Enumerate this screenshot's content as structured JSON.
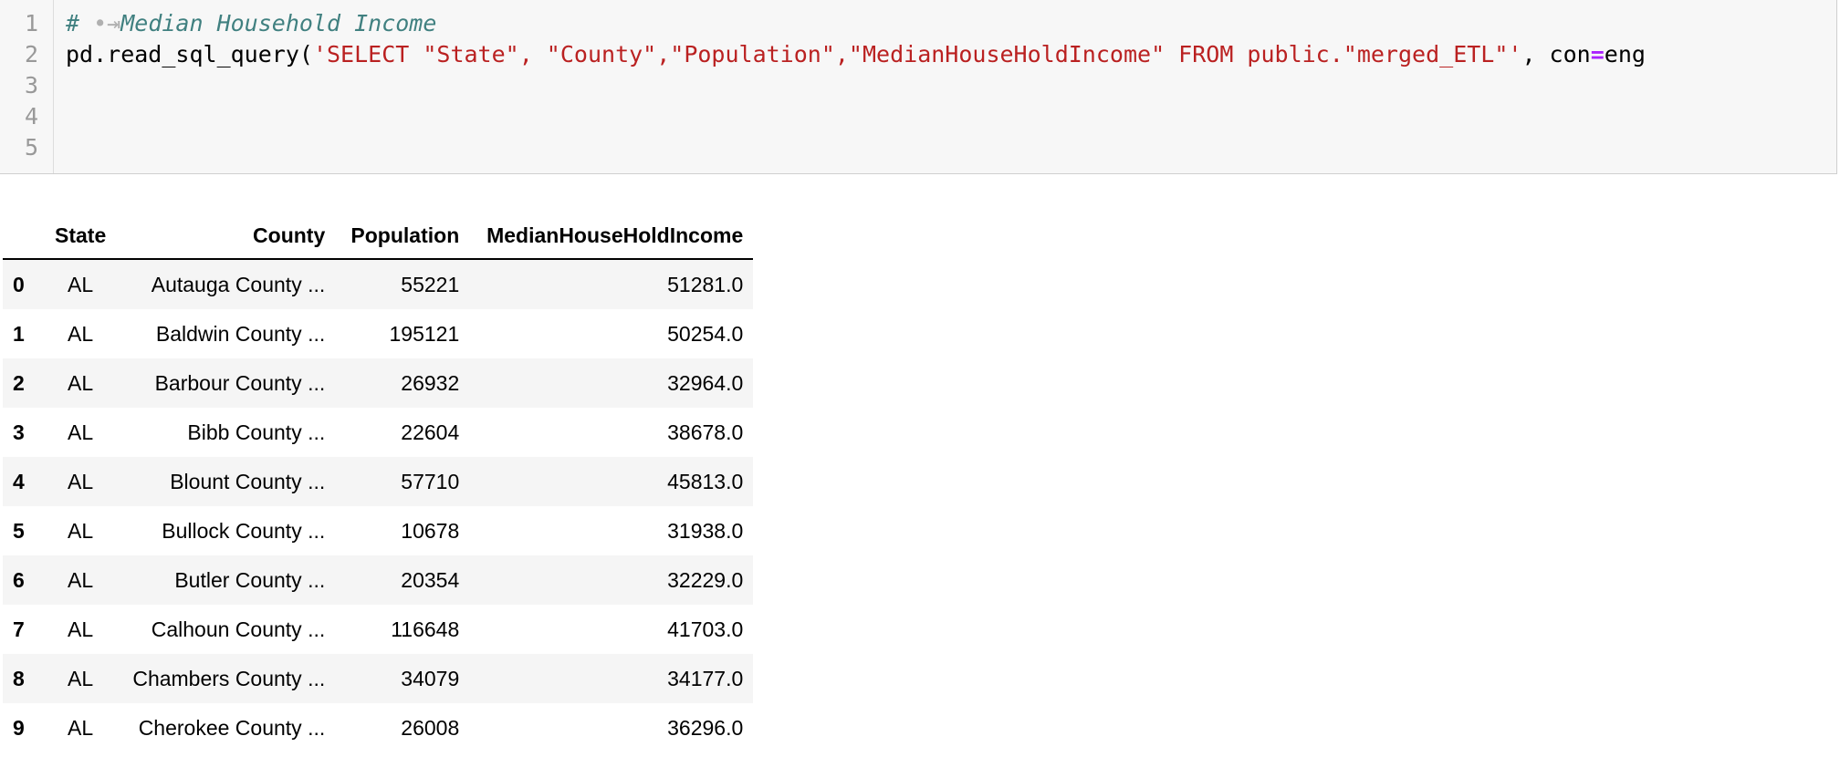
{
  "code_cell": {
    "line_numbers": [
      "1",
      "2",
      "3",
      "4",
      "5"
    ],
    "line1_comment_hash": "# ",
    "line1_tab_marker": "•⇥",
    "line1_comment_text": "Median Household Income",
    "line2_prefix": "pd.read_sql_query(",
    "line2_string": "'SELECT \"State\", \"County\",\"Population\",\"MedianHouseHoldIncome\" FROM public.\"merged_ETL\"'",
    "line2_middle": ", con",
    "line2_operator": "=",
    "line2_suffix": "eng"
  },
  "dataframe": {
    "columns": [
      "",
      "State",
      "County",
      "Population",
      "MedianHouseHoldIncome"
    ],
    "rows": [
      {
        "index": "0",
        "state": "AL",
        "county": "Autauga County ...",
        "population": "55221",
        "income": "51281.0"
      },
      {
        "index": "1",
        "state": "AL",
        "county": "Baldwin County ...",
        "population": "195121",
        "income": "50254.0"
      },
      {
        "index": "2",
        "state": "AL",
        "county": "Barbour County ...",
        "population": "26932",
        "income": "32964.0"
      },
      {
        "index": "3",
        "state": "AL",
        "county": "Bibb County ...",
        "population": "22604",
        "income": "38678.0"
      },
      {
        "index": "4",
        "state": "AL",
        "county": "Blount County ...",
        "population": "57710",
        "income": "45813.0"
      },
      {
        "index": "5",
        "state": "AL",
        "county": "Bullock County ...",
        "population": "10678",
        "income": "31938.0"
      },
      {
        "index": "6",
        "state": "AL",
        "county": "Butler County ...",
        "population": "20354",
        "income": "32229.0"
      },
      {
        "index": "7",
        "state": "AL",
        "county": "Calhoun County ...",
        "population": "116648",
        "income": "41703.0"
      },
      {
        "index": "8",
        "state": "AL",
        "county": "Chambers County ...",
        "population": "34079",
        "income": "34177.0"
      },
      {
        "index": "9",
        "state": "AL",
        "county": "Cherokee County ...",
        "population": "26008",
        "income": "36296.0"
      }
    ]
  }
}
